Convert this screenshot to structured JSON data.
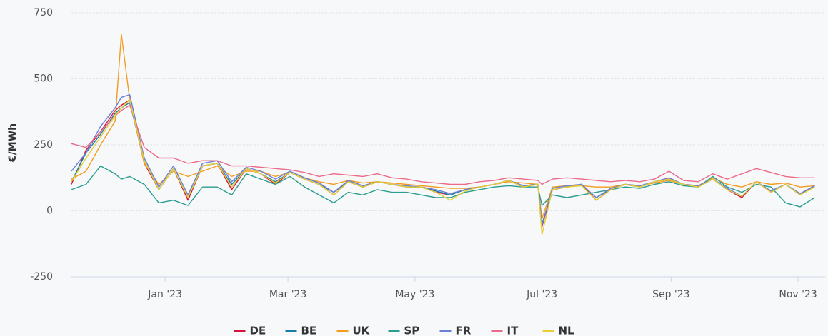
{
  "chart_data": {
    "type": "line",
    "y_label": "€/MWh",
    "x": [
      0,
      7,
      14,
      21,
      24,
      28,
      35,
      42,
      49,
      56,
      63,
      70,
      77,
      84,
      91,
      98,
      105,
      112,
      119,
      126,
      133,
      140,
      147,
      154,
      161,
      168,
      175,
      182,
      189,
      196,
      203,
      210,
      217,
      224,
      226,
      231,
      238,
      245,
      252,
      259,
      266,
      273,
      280,
      287,
      294,
      301,
      308,
      315,
      322,
      329,
      336,
      343,
      350,
      357
    ],
    "xlim": [
      0,
      362
    ],
    "xticks": [
      {
        "value": 45,
        "label": "Jan '23"
      },
      {
        "value": 104,
        "label": "Mar '23"
      },
      {
        "value": 165,
        "label": "May '23"
      },
      {
        "value": 226,
        "label": "Jul '23"
      },
      {
        "value": 288,
        "label": "Sep '23"
      },
      {
        "value": 349,
        "label": "Nov '23"
      }
    ],
    "ylim": [
      -250,
      750
    ],
    "yticks": [
      -250,
      0,
      250,
      500,
      750
    ],
    "grid": true,
    "legend": "bottom",
    "series": [
      {
        "name": "DE",
        "color": "#d5143c",
        "values": [
          100,
          230,
          300,
          380,
          400,
          420,
          180,
          80,
          160,
          40,
          170,
          180,
          80,
          160,
          140,
          100,
          145,
          120,
          100,
          60,
          110,
          90,
          110,
          100,
          90,
          90,
          70,
          60,
          80,
          90,
          100,
          115,
          90,
          100,
          -60,
          80,
          90,
          100,
          40,
          80,
          100,
          90,
          110,
          120,
          100,
          90,
          120,
          80,
          50,
          110,
          70,
          100,
          60,
          95
        ]
      },
      {
        "name": "BE",
        "color": "#1a7ea4",
        "values": [
          110,
          220,
          290,
          370,
          390,
          410,
          190,
          80,
          160,
          50,
          170,
          180,
          100,
          160,
          140,
          110,
          145,
          120,
          100,
          70,
          110,
          90,
          110,
          100,
          90,
          90,
          75,
          60,
          80,
          90,
          100,
          115,
          95,
          100,
          -50,
          80,
          90,
          100,
          50,
          80,
          100,
          90,
          110,
          120,
          100,
          90,
          120,
          85,
          55,
          110,
          75,
          100,
          60,
          95
        ]
      },
      {
        "name": "UK",
        "color": "#f39c1f",
        "values": [
          120,
          150,
          250,
          340,
          670,
          420,
          180,
          100,
          150,
          130,
          150,
          170,
          130,
          150,
          150,
          130,
          145,
          125,
          110,
          100,
          115,
          105,
          110,
          105,
          100,
          95,
          90,
          85,
          85,
          90,
          100,
          110,
          105,
          100,
          -30,
          90,
          95,
          95,
          90,
          90,
          100,
          95,
          105,
          115,
          100,
          95,
          125,
          100,
          90,
          110,
          100,
          105,
          90,
          95
        ]
      },
      {
        "name": "SP",
        "color": "#2a9d8f",
        "values": [
          80,
          100,
          170,
          140,
          120,
          130,
          100,
          30,
          40,
          20,
          90,
          90,
          60,
          140,
          120,
          100,
          130,
          90,
          60,
          30,
          70,
          60,
          80,
          70,
          70,
          60,
          50,
          50,
          70,
          80,
          90,
          95,
          90,
          90,
          20,
          60,
          50,
          60,
          70,
          80,
          90,
          85,
          100,
          110,
          95,
          90,
          130,
          90,
          70,
          100,
          90,
          30,
          15,
          50
        ]
      },
      {
        "name": "FR",
        "color": "#6b7fd7",
        "values": [
          150,
          220,
          320,
          390,
          430,
          440,
          200,
          90,
          170,
          60,
          180,
          190,
          110,
          165,
          150,
          120,
          150,
          125,
          105,
          70,
          115,
          95,
          110,
          100,
          95,
          90,
          80,
          65,
          80,
          90,
          100,
          115,
          95,
          100,
          -55,
          85,
          95,
          100,
          50,
          85,
          100,
          95,
          110,
          125,
          100,
          95,
          120,
          85,
          55,
          110,
          75,
          100,
          65,
          95
        ]
      },
      {
        "name": "IT",
        "color": "#ec6a8a",
        "values": [
          255,
          240,
          300,
          360,
          380,
          400,
          240,
          200,
          200,
          180,
          190,
          190,
          170,
          170,
          165,
          160,
          155,
          145,
          130,
          140,
          135,
          130,
          140,
          125,
          120,
          110,
          105,
          100,
          100,
          110,
          115,
          125,
          120,
          115,
          100,
          120,
          125,
          120,
          115,
          110,
          115,
          110,
          120,
          150,
          115,
          110,
          140,
          120,
          140,
          160,
          145,
          130,
          125,
          125
        ]
      },
      {
        "name": "NL",
        "color": "#e6cf2f",
        "values": [
          110,
          200,
          280,
          360,
          390,
          420,
          190,
          80,
          160,
          50,
          170,
          180,
          90,
          160,
          140,
          105,
          145,
          120,
          100,
          60,
          110,
          90,
          110,
          100,
          90,
          90,
          70,
          40,
          75,
          90,
          100,
          115,
          90,
          100,
          -90,
          80,
          90,
          95,
          40,
          80,
          100,
          90,
          110,
          120,
          100,
          90,
          120,
          80,
          55,
          110,
          70,
          100,
          60,
          90
        ]
      }
    ]
  }
}
